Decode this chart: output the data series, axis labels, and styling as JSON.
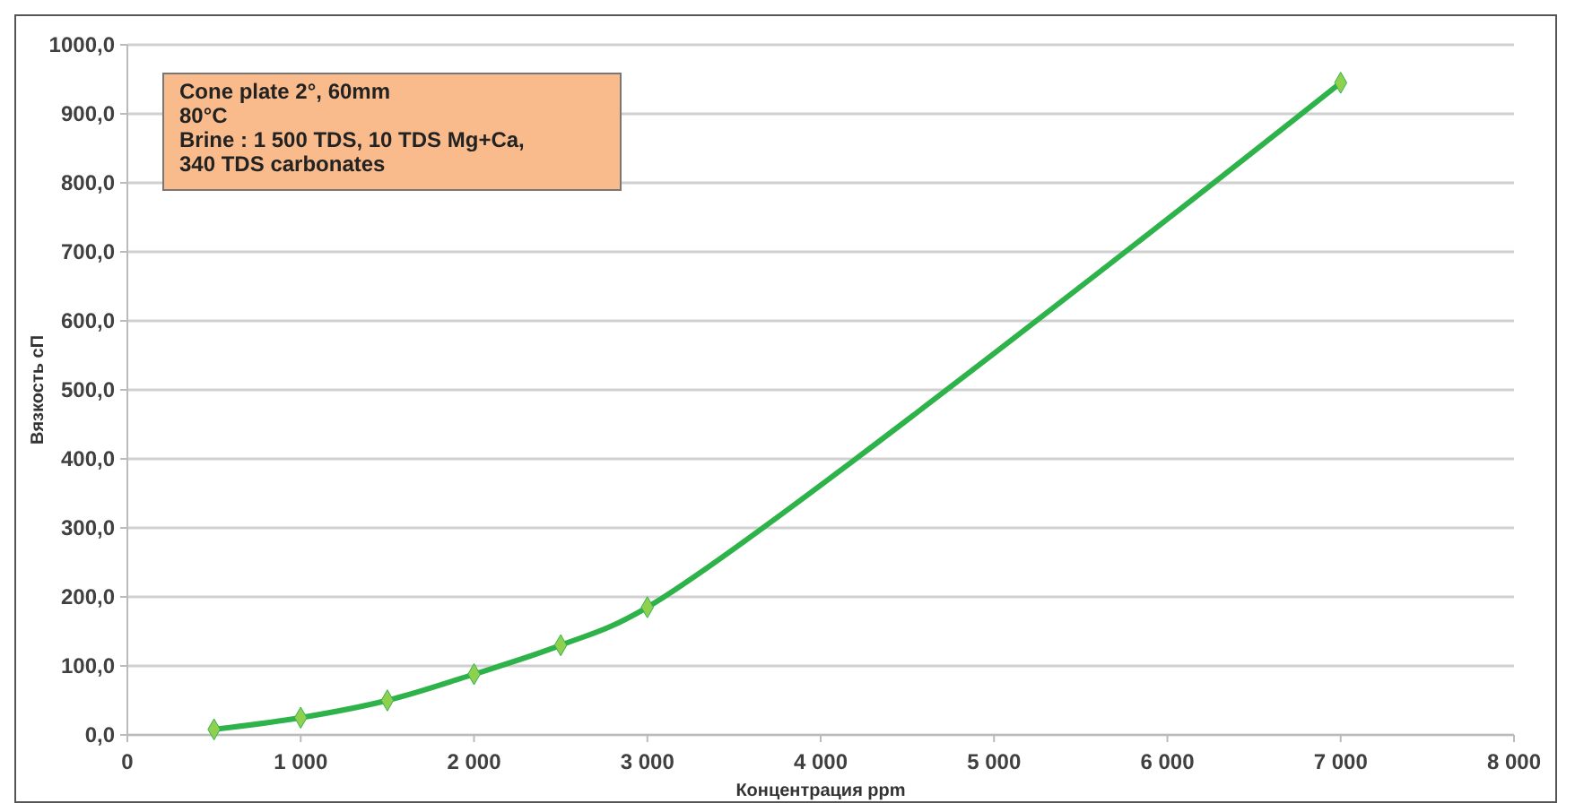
{
  "chart_data": {
    "type": "line",
    "xlabel": "Концентрация ppm",
    "ylabel": "Вязкость сП",
    "annotations": [
      "Cone plate 2°, 60mm\n80°C\nBrine : 1 500 TDS,  10 TDS Mg+Ca,\n340 TDS carbonates"
    ],
    "x": [
      500,
      1000,
      1500,
      2000,
      2500,
      3000,
      7000
    ],
    "series": [
      {
        "color": "#2eb24a",
        "values": [
          8,
          25,
          50,
          88,
          130,
          185,
          945
        ]
      }
    ],
    "xlim": [
      0,
      8000
    ],
    "xticks": [
      0,
      {
        "value": 1000,
        "label": "1 000"
      },
      {
        "value": 2000,
        "label": "2 000"
      },
      {
        "value": 3000,
        "label": "3 000"
      },
      {
        "value": 4000,
        "label": "4 000"
      },
      {
        "value": 5000,
        "label": "5 000"
      },
      {
        "value": 6000,
        "label": "6 000"
      },
      {
        "value": 7000,
        "label": "7 000"
      },
      {
        "value": 8000,
        "label": "8 000"
      }
    ],
    "ylim": [
      0,
      1000
    ],
    "yticks": [
      {
        "value": 0,
        "label": "0,0"
      },
      {
        "value": 100,
        "label": "100,0"
      },
      {
        "value": 200,
        "label": "200,0"
      },
      {
        "value": 300,
        "label": "300,0"
      },
      {
        "value": 400,
        "label": "400,0"
      },
      {
        "value": 500,
        "label": "500,0"
      },
      {
        "value": 600,
        "label": "600,0"
      },
      {
        "value": 700,
        "label": "700,0"
      },
      {
        "value": 800,
        "label": "800,0"
      },
      {
        "value": 900,
        "label": "900,0"
      },
      {
        "value": 1000,
        "label": "1000,0"
      }
    ],
    "grid": "y",
    "marker": "diamond",
    "line_style": "solid"
  }
}
